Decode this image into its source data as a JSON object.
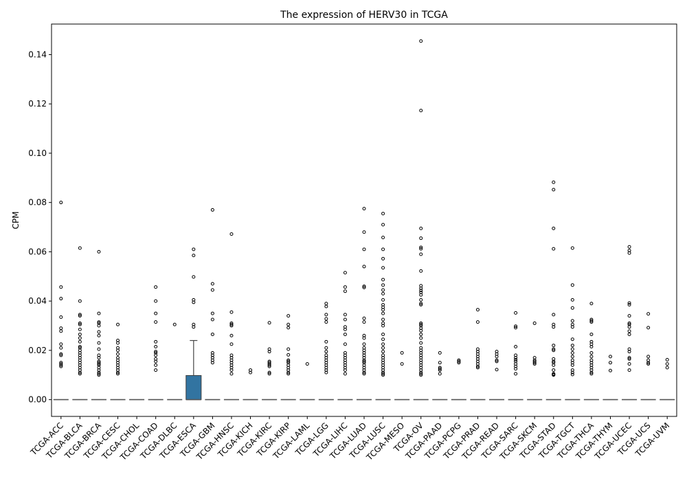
{
  "chart_data": {
    "type": "boxplot",
    "title": "The expression of HERV30 in TCGA",
    "xlabel": "",
    "ylabel": "CPM",
    "ylim": [
      -0.0068,
      0.1524
    ],
    "yticks": [
      0.0,
      0.02,
      0.04,
      0.06,
      0.08,
      0.1,
      0.12,
      0.14
    ],
    "ytick_labels": [
      "0.00",
      "0.02",
      "0.04",
      "0.06",
      "0.08",
      "0.10",
      "0.12",
      "0.14"
    ],
    "grid": false,
    "colors": {
      "box_fill": "#3274a1",
      "median": "#555555",
      "outlier_edge": "#000000"
    },
    "categories": [
      "TCGA-ACC",
      "TCGA-BLCA",
      "TCGA-BRCA",
      "TCGA-CESC",
      "TCGA-CHOL",
      "TCGA-COAD",
      "TCGA-DLBC",
      "TCGA-ESCA",
      "TCGA-GBM",
      "TCGA-HNSC",
      "TCGA-KICH",
      "TCGA-KIRC",
      "TCGA-KIRP",
      "TCGA-LAML",
      "TCGA-LGG",
      "TCGA-LIHC",
      "TCGA-LUAD",
      "TCGA-LUSC",
      "TCGA-MESO",
      "TCGA-OV",
      "TCGA-PAAD",
      "TCGA-PCPG",
      "TCGA-PRAD",
      "TCGA-READ",
      "TCGA-SARC",
      "TCGA-SKCM",
      "TCGA-STAD",
      "TCGA-TGCT",
      "TCGA-THCA",
      "TCGA-THYM",
      "TCGA-UCEC",
      "TCGA-UCS",
      "TCGA-UVM"
    ],
    "boxes": [
      {
        "q1": 0,
        "median": 0,
        "q3": 0,
        "whislo": 0,
        "whishi": 0,
        "fliers": [
          0.08,
          0.0457,
          0.041,
          0.0335,
          0.029,
          0.0278,
          0.0225,
          0.021,
          0.0185,
          0.018,
          0.015,
          0.0145,
          0.014,
          0.0135
        ]
      },
      {
        "q1": 0,
        "median": 0,
        "q3": 0,
        "whislo": 0,
        "whishi": 0,
        "fliers": [
          0.0615,
          0.04,
          0.0345,
          0.034,
          0.031,
          0.0305,
          0.0285,
          0.0265,
          0.025,
          0.0235,
          0.0215,
          0.021,
          0.02,
          0.019,
          0.018,
          0.017,
          0.016,
          0.015,
          0.014,
          0.013,
          0.012,
          0.011,
          0.0105
        ]
      },
      {
        "q1": 0,
        "median": 0,
        "q3": 0,
        "whislo": 0,
        "whishi": 0,
        "fliers": [
          0.06,
          0.035,
          0.0315,
          0.031,
          0.03,
          0.0275,
          0.026,
          0.023,
          0.0205,
          0.018,
          0.017,
          0.0155,
          0.015,
          0.0145,
          0.014,
          0.013,
          0.012,
          0.011,
          0.0105,
          0.01
        ]
      },
      {
        "q1": 0,
        "median": 0,
        "q3": 0,
        "whislo": 0,
        "whishi": 0,
        "fliers": [
          0.0305,
          0.024,
          0.023,
          0.021,
          0.02,
          0.0185,
          0.017,
          0.016,
          0.015,
          0.014,
          0.013,
          0.012,
          0.011,
          0.0105
        ]
      },
      {
        "q1": 0,
        "median": 0,
        "q3": 0,
        "whislo": 0,
        "whishi": 0,
        "fliers": []
      },
      {
        "q1": 0,
        "median": 0,
        "q3": 0,
        "whislo": 0,
        "whishi": 0,
        "fliers": [
          0.0457,
          0.04,
          0.035,
          0.0315,
          0.0235,
          0.0215,
          0.0195,
          0.019,
          0.018,
          0.0165,
          0.0155,
          0.014,
          0.012
        ]
      },
      {
        "q1": 0,
        "median": 0,
        "q3": 0,
        "whislo": 0,
        "whishi": 0,
        "fliers": [
          0.0305
        ]
      },
      {
        "q1": 0,
        "median": 0,
        "q3": 0.0098,
        "whislo": 0,
        "whishi": 0.024,
        "fliers": [
          0.061,
          0.0585,
          0.0498,
          0.0405,
          0.0395,
          0.0305,
          0.0295
        ]
      },
      {
        "q1": 0,
        "median": 0,
        "q3": 0,
        "whislo": 0,
        "whishi": 0,
        "fliers": [
          0.077,
          0.047,
          0.0445,
          0.035,
          0.0325,
          0.0265,
          0.019,
          0.018,
          0.017,
          0.016,
          0.015
        ]
      },
      {
        "q1": 0,
        "median": 0,
        "q3": 0,
        "whislo": 0,
        "whishi": 0,
        "fliers": [
          0.0672,
          0.0355,
          0.031,
          0.0305,
          0.03,
          0.026,
          0.0225,
          0.018,
          0.017,
          0.016,
          0.015,
          0.014,
          0.013,
          0.012,
          0.0105
        ]
      },
      {
        "q1": 0,
        "median": 0,
        "q3": 0,
        "whislo": 0,
        "whishi": 0,
        "fliers": [
          0.012,
          0.011
        ]
      },
      {
        "q1": 0,
        "median": 0,
        "q3": 0,
        "whislo": 0,
        "whishi": 0,
        "fliers": [
          0.0312,
          0.0205,
          0.0195,
          0.0155,
          0.015,
          0.0145,
          0.014,
          0.0135,
          0.011,
          0.0105
        ]
      },
      {
        "q1": 0,
        "median": 0,
        "q3": 0,
        "whislo": 0,
        "whishi": 0,
        "fliers": [
          0.034,
          0.0305,
          0.0292,
          0.0205,
          0.0182,
          0.016,
          0.0155,
          0.015,
          0.014,
          0.013,
          0.012,
          0.011,
          0.0105
        ]
      },
      {
        "q1": 0,
        "median": 0,
        "q3": 0,
        "whislo": 0,
        "whishi": 0,
        "fliers": [
          0.0145
        ]
      },
      {
        "q1": 0,
        "median": 0,
        "q3": 0,
        "whislo": 0,
        "whishi": 0,
        "fliers": [
          0.039,
          0.0378,
          0.0345,
          0.0328,
          0.0315,
          0.0235,
          0.021,
          0.0195,
          0.018,
          0.017,
          0.016,
          0.015,
          0.014,
          0.013,
          0.012,
          0.011
        ]
      },
      {
        "q1": 0,
        "median": 0,
        "q3": 0,
        "whislo": 0,
        "whishi": 0,
        "fliers": [
          0.0515,
          0.0457,
          0.044,
          0.0345,
          0.0325,
          0.0295,
          0.0285,
          0.0265,
          0.0225,
          0.019,
          0.018,
          0.017,
          0.016,
          0.015,
          0.014,
          0.013,
          0.012,
          0.0105
        ]
      },
      {
        "q1": 0,
        "median": 0,
        "q3": 0,
        "whislo": 0,
        "whishi": 0,
        "fliers": [
          0.0775,
          0.068,
          0.061,
          0.054,
          0.046,
          0.0455,
          0.033,
          0.0315,
          0.026,
          0.025,
          0.0225,
          0.021,
          0.02,
          0.019,
          0.018,
          0.017,
          0.016,
          0.0155,
          0.015,
          0.014,
          0.013,
          0.012,
          0.011,
          0.0105
        ]
      },
      {
        "q1": 0,
        "median": 0,
        "q3": 0,
        "whislo": 0,
        "whishi": 0,
        "fliers": [
          0.0755,
          0.071,
          0.0658,
          0.061,
          0.0572,
          0.0535,
          0.0487,
          0.0465,
          0.0445,
          0.043,
          0.0405,
          0.0385,
          0.0375,
          0.0365,
          0.035,
          0.0325,
          0.031,
          0.03,
          0.0265,
          0.0245,
          0.0225,
          0.021,
          0.0195,
          0.018,
          0.017,
          0.016,
          0.015,
          0.014,
          0.013,
          0.012,
          0.011,
          0.0105,
          0.01
        ]
      },
      {
        "q1": 0,
        "median": 0,
        "q3": 0,
        "whislo": 0,
        "whishi": 0,
        "fliers": [
          0.019,
          0.0145
        ]
      },
      {
        "q1": 0,
        "median": 0,
        "q3": 0,
        "whislo": 0,
        "whishi": 0,
        "fliers": [
          0.1455,
          0.1173,
          0.0695,
          0.0655,
          0.0618,
          0.0612,
          0.059,
          0.0522,
          0.0462,
          0.0452,
          0.0443,
          0.0435,
          0.0425,
          0.0405,
          0.039,
          0.0385,
          0.031,
          0.0305,
          0.03,
          0.029,
          0.028,
          0.0265,
          0.025,
          0.023,
          0.021,
          0.02,
          0.019,
          0.018,
          0.017,
          0.016,
          0.015,
          0.014,
          0.013,
          0.012,
          0.011,
          0.0105,
          0.01
        ]
      },
      {
        "q1": 0,
        "median": 0,
        "q3": 0,
        "whislo": 0,
        "whishi": 0,
        "fliers": [
          0.019,
          0.015,
          0.013,
          0.0125,
          0.012,
          0.0105
        ]
      },
      {
        "q1": 0,
        "median": 0,
        "q3": 0,
        "whislo": 0,
        "whishi": 0,
        "fliers": [
          0.016,
          0.0155,
          0.015
        ]
      },
      {
        "q1": 0,
        "median": 0,
        "q3": 0,
        "whislo": 0,
        "whishi": 0,
        "fliers": [
          0.0365,
          0.0315,
          0.0205,
          0.0195,
          0.0185,
          0.0175,
          0.0165,
          0.0155,
          0.0145,
          0.0135,
          0.013
        ]
      },
      {
        "q1": 0,
        "median": 0,
        "q3": 0,
        "whislo": 0,
        "whishi": 0,
        "fliers": [
          0.0195,
          0.0185,
          0.0175,
          0.016,
          0.0155,
          0.0122
        ]
      },
      {
        "q1": 0,
        "median": 0,
        "q3": 0,
        "whislo": 0,
        "whishi": 0,
        "fliers": [
          0.0352,
          0.0298,
          0.0292,
          0.0215,
          0.018,
          0.017,
          0.0162,
          0.0155,
          0.0145,
          0.0135,
          0.0125,
          0.0105
        ]
      },
      {
        "q1": 0,
        "median": 0,
        "q3": 0,
        "whislo": 0,
        "whishi": 0,
        "fliers": [
          0.031,
          0.017,
          0.016,
          0.0155,
          0.015,
          0.0145
        ]
      },
      {
        "q1": 0,
        "median": 0,
        "q3": 0,
        "whislo": 0,
        "whishi": 0,
        "fliers": [
          0.0882,
          0.0852,
          0.0695,
          0.0612,
          0.0345,
          0.0305,
          0.0295,
          0.022,
          0.0205,
          0.02,
          0.0165,
          0.0155,
          0.015,
          0.014,
          0.012,
          0.0105,
          0.0102,
          0.01
        ]
      },
      {
        "q1": 0,
        "median": 0,
        "q3": 0,
        "whislo": 0,
        "whishi": 0,
        "fliers": [
          0.0615,
          0.0465,
          0.0405,
          0.0372,
          0.032,
          0.0305,
          0.0295,
          0.0245,
          0.022,
          0.0205,
          0.019,
          0.0175,
          0.016,
          0.015,
          0.014,
          0.012,
          0.011,
          0.0102
        ]
      },
      {
        "q1": 0,
        "median": 0,
        "q3": 0,
        "whislo": 0,
        "whishi": 0,
        "fliers": [
          0.039,
          0.0325,
          0.032,
          0.0315,
          0.0265,
          0.0235,
          0.0225,
          0.0215,
          0.019,
          0.0175,
          0.016,
          0.015,
          0.014,
          0.013,
          0.012,
          0.011,
          0.0105
        ]
      },
      {
        "q1": 0,
        "median": 0,
        "q3": 0,
        "whislo": 0,
        "whishi": 0,
        "fliers": [
          0.0175,
          0.015,
          0.0118
        ]
      },
      {
        "q1": 0,
        "median": 0,
        "q3": 0,
        "whislo": 0,
        "whishi": 0,
        "fliers": [
          0.062,
          0.0605,
          0.0595,
          0.0392,
          0.0385,
          0.034,
          0.031,
          0.0305,
          0.0295,
          0.0278,
          0.0265,
          0.0205,
          0.0195,
          0.017,
          0.0165,
          0.0145,
          0.012
        ]
      },
      {
        "q1": 0,
        "median": 0,
        "q3": 0,
        "whislo": 0,
        "whishi": 0,
        "fliers": [
          0.0348,
          0.0292,
          0.0175,
          0.016,
          0.015,
          0.0145
        ]
      },
      {
        "q1": 0,
        "median": 0,
        "q3": 0,
        "whislo": 0,
        "whishi": 0,
        "fliers": [
          0.0162,
          0.0145,
          0.013
        ]
      }
    ]
  }
}
